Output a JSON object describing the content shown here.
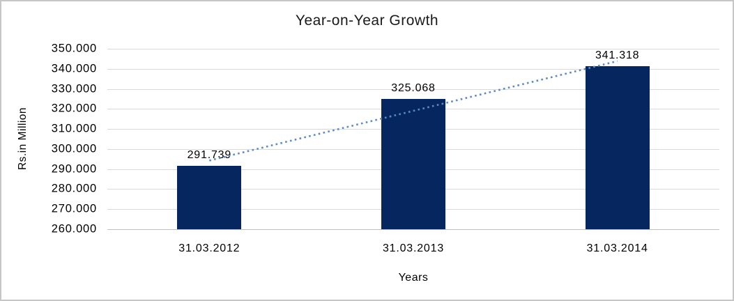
{
  "chart_data": {
    "type": "bar",
    "title": "Year-on-Year Growth",
    "categories": [
      "31.03.2012",
      "31.03.2013",
      "31.03.2014"
    ],
    "values": [
      291.739,
      325.068,
      341.318
    ],
    "data_labels": [
      "291.739",
      "325.068",
      "341.318"
    ],
    "xlabel": "Years",
    "ylabel": "Rs.in Million",
    "ylim": [
      260,
      350
    ],
    "ytick_step": 10,
    "ytick_labels_top_down": [
      "350.000",
      "340.000",
      "330.000",
      "320.000",
      "310.000",
      "300.000",
      "290.000",
      "280.000",
      "270.000",
      "260.000"
    ],
    "grid": true,
    "legend": false,
    "trendline": {
      "type": "linear",
      "style": "dotted",
      "start_value": 294.25,
      "end_value": 343.83
    }
  },
  "colors": {
    "bar": "#06265f",
    "trendline": "#5b8ac5",
    "gridline": "#d9d9d9",
    "axis_line": "#bfbfbf",
    "text": "#000000",
    "frame": "#c6c6c6",
    "background": "#ffffff"
  }
}
